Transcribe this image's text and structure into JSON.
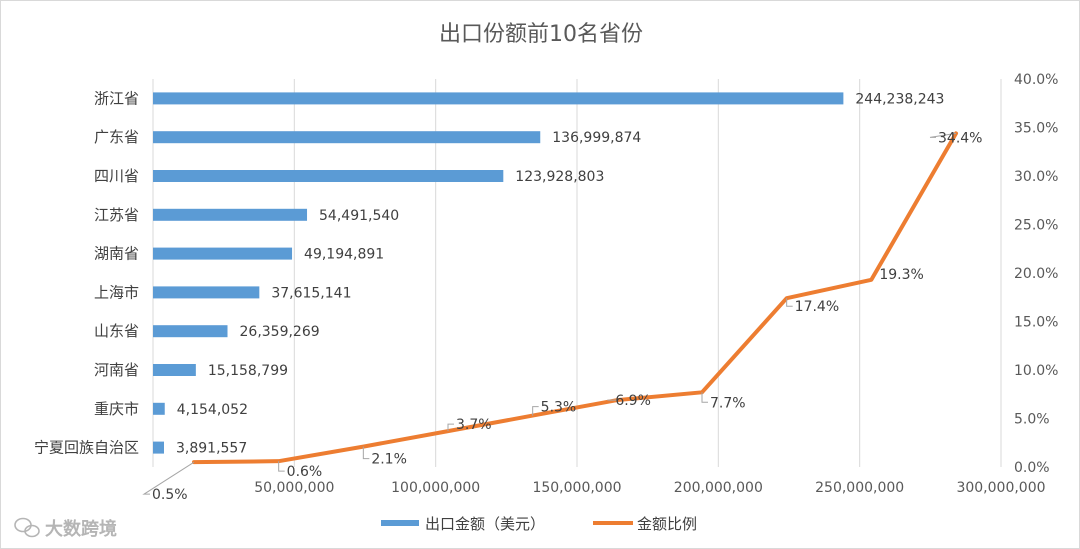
{
  "chart_data": {
    "type": "bar+line",
    "title": "出口份额前10名省份",
    "categories": [
      "浙江省",
      "广东省",
      "四川省",
      "江苏省",
      "湖南省",
      "上海市",
      "山东省",
      "河南省",
      "重庆市",
      "宁夏回族自治区"
    ],
    "series": [
      {
        "name": "出口金额（美元）",
        "type": "bar",
        "axis": "primary",
        "color": "#5b9bd5",
        "values": [
          244238243,
          136999874,
          123928803,
          54491540,
          49194891,
          37615141,
          26359269,
          15158799,
          4154052,
          3891557
        ],
        "labels": [
          "244,238,243",
          "136,999,874",
          "123,928,803",
          "54,491,540",
          "49,194,891",
          "37,615,141",
          "26,359,269",
          "15,158,799",
          "4,154,052",
          "3,891,557"
        ]
      },
      {
        "name": "金额比例",
        "type": "line",
        "axis": "secondary",
        "color": "#ed7d31",
        "values": [
          0.5,
          0.6,
          2.1,
          3.7,
          5.3,
          6.9,
          7.7,
          17.4,
          19.3,
          34.4
        ],
        "labels": [
          "0.5%",
          "0.6%",
          "2.1%",
          "3.7%",
          "5.3%",
          "6.9%",
          "7.7%",
          "17.4%",
          "19.3%",
          "34.4%"
        ]
      }
    ],
    "x_axis": {
      "min": 0,
      "max": 300000000,
      "tick_labels": [
        "",
        "50,000,000",
        "100,000,000",
        "150,000,000",
        "200,000,000",
        "250,000,000",
        "300,000,000"
      ]
    },
    "secondary_y_axis": {
      "min": 0,
      "max": 40,
      "tick_labels": [
        "0.0%",
        "5.0%",
        "10.0%",
        "15.0%",
        "20.0%",
        "25.0%",
        "30.0%",
        "35.0%",
        "40.0%"
      ]
    },
    "legend": [
      "出口金额（美元）",
      "金额比例"
    ],
    "legend_position": "bottom",
    "watermark": "大数跨境"
  }
}
